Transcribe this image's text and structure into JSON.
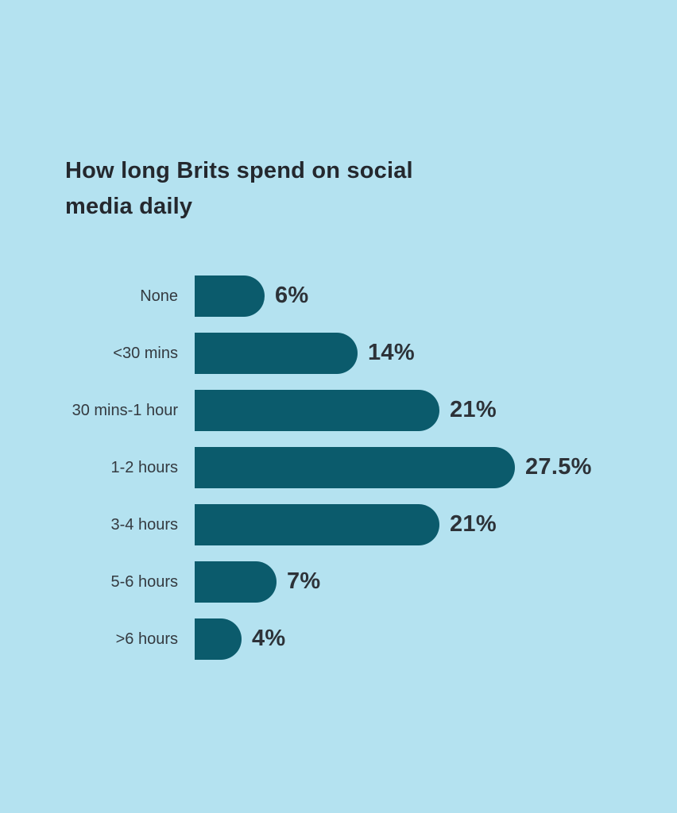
{
  "chart_data": {
    "type": "bar",
    "orientation": "horizontal",
    "title": "How long Brits spend on social media daily",
    "categories": [
      "None",
      "<30 mins",
      "30 mins-1 hour",
      "1-2 hours",
      "3-4 hours",
      "5-6 hours",
      ">6 hours"
    ],
    "values": [
      6,
      14,
      21,
      27.5,
      21,
      7,
      4
    ],
    "value_labels": [
      "6%",
      "14%",
      "21%",
      "27.5%",
      "21%",
      "7%",
      "4%"
    ],
    "unit": "percent",
    "xlim": [
      0,
      27.5
    ],
    "grid": false,
    "legend": "none",
    "colors": {
      "background": "#b4e2f0",
      "bar": "#0b5b6c",
      "title_text": "#24282e",
      "category_text": "#343a40",
      "value_text": "#2d3238"
    }
  }
}
